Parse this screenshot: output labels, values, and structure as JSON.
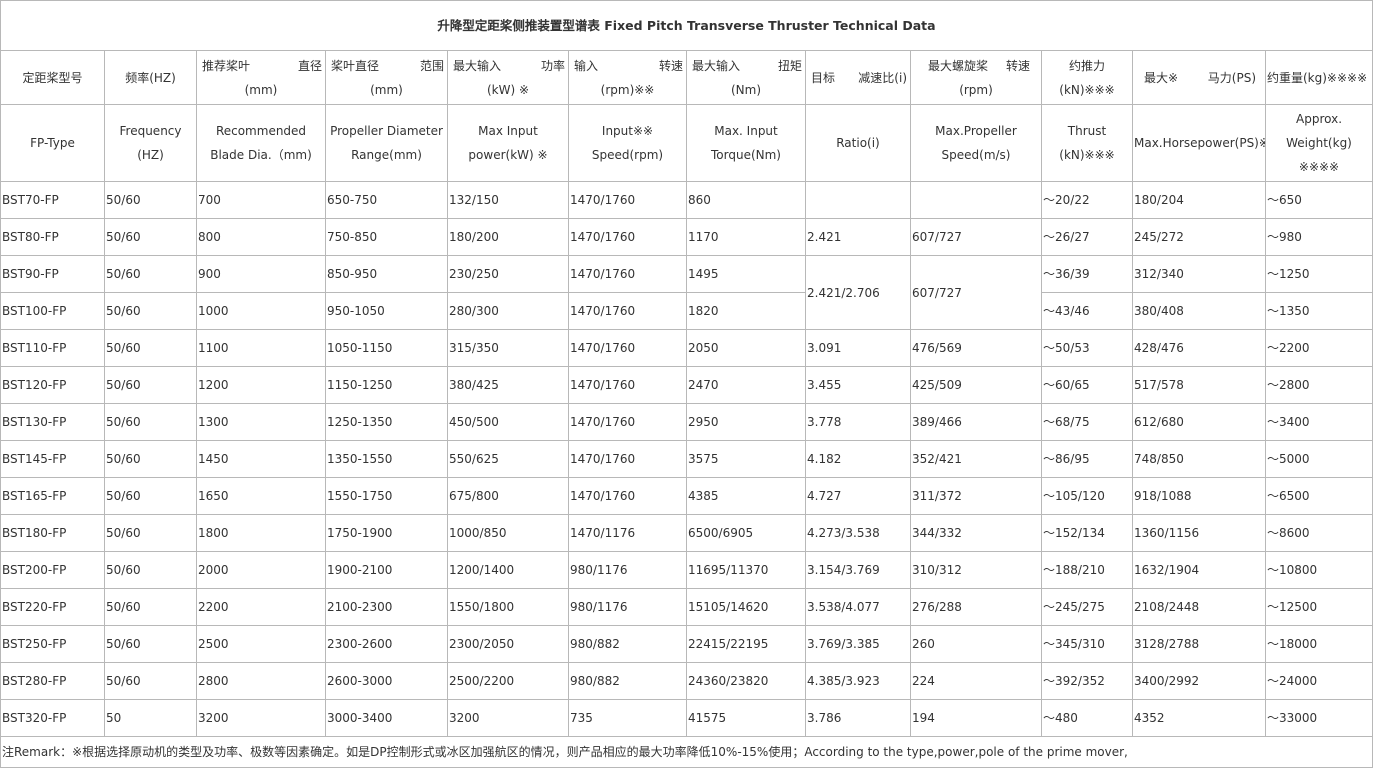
{
  "title": "升降型定距桨侧推装置型谱表  Fixed Pitch Transverse Thruster Technical Data",
  "header_cn": {
    "model": "定距桨型号",
    "frequency": "频率(HZ)",
    "blade_a": "推荐桨叶",
    "blade_b": "直径",
    "blade_c": "(mm)",
    "range_a": "桨叶直径",
    "range_b": "范围",
    "range_c": "(mm)",
    "power_a": "最大输入",
    "power_b": "功率",
    "power_c": "(kW) ※",
    "speed_a": "输入",
    "speed_b": "转速",
    "speed_c": "(rpm)※※",
    "torque_a": "最大输入",
    "torque_b": "扭矩",
    "torque_c": "(Nm)",
    "ratio_a": "目标",
    "ratio_b": "减速比(i)",
    "prop_a": "最大螺旋桨",
    "prop_b": "转速",
    "prop_c": "(rpm)",
    "thrust_a": "约推力",
    "thrust_c": "(kN)※※※",
    "hp_a": "最大※",
    "hp_b": "马力(PS)",
    "weight": "约重量(kg)※※※※"
  },
  "header_en": {
    "model": "FP-Type",
    "frequency": "Frequency  (HZ)",
    "blade_a": "Recommended",
    "blade_b": "Blade Dia.（mm)",
    "range_a": "Propeller Diameter",
    "range_b": "Range(mm)",
    "power_a": "Max Input",
    "power_b": "power(kW) ※",
    "speed_a": "Input※※",
    "speed_b": "Speed(rpm)",
    "torque_a": "Max. Input",
    "torque_b": "Torque(Nm)",
    "ratio": "Ratio(i)",
    "prop_a": "Max.Propeller",
    "prop_b": "Speed(m/s)",
    "thrust_a": "Thrust",
    "thrust_b": "(kN)※※※",
    "hp": "Max.Horsepower(PS)※",
    "weight_a": "Approx.",
    "weight_b": "Weight(kg)",
    "weight_c": "※※※※"
  },
  "rows": [
    {
      "model": "BST70-FP",
      "freq": "50/60",
      "blade": "700",
      "range": "650-750",
      "power": "132/150",
      "speed": "1470/1760",
      "torque": "860",
      "ratio": "",
      "prop": "",
      "thrust": "～20/22",
      "hp": "180/204",
      "weight": "～650"
    },
    {
      "model": "BST80-FP",
      "freq": "50/60",
      "blade": "800",
      "range": "750-850",
      "power": "180/200",
      "speed": "1470/1760",
      "torque": "1170",
      "ratio": "2.421",
      "prop": "607/727",
      "thrust": "～26/27",
      "hp": "245/272",
      "weight": "～980"
    },
    {
      "model": "BST90-FP",
      "freq": "50/60",
      "blade": "900",
      "range": "850-950",
      "power": "230/250",
      "speed": "1470/1760",
      "torque": "1495",
      "ratio": "2.421/2.706",
      "prop": "607/727",
      "thrust": "～36/39",
      "hp": "312/340",
      "weight": "～1250"
    },
    {
      "model": "BST100-FP",
      "freq": "50/60",
      "blade": "1000",
      "range": "950-1050",
      "power": "280/300",
      "speed": "1470/1760",
      "torque": "1820",
      "thrust": "～43/46",
      "hp": "380/408",
      "weight": "～1350"
    },
    {
      "model": "BST110-FP",
      "freq": "50/60",
      "blade": "1100",
      "range": "1050-1150",
      "power": "315/350",
      "speed": "1470/1760",
      "torque": "2050",
      "ratio": "3.091",
      "prop": "476/569",
      "thrust": "～50/53",
      "hp": "428/476",
      "weight": "～2200"
    },
    {
      "model": "BST120-FP",
      "freq": "50/60",
      "blade": "1200",
      "range": "1150-1250",
      "power": "380/425",
      "speed": "1470/1760",
      "torque": "2470",
      "ratio": "3.455",
      "prop": "425/509",
      "thrust": "～60/65",
      "hp": "517/578",
      "weight": "～2800"
    },
    {
      "model": "BST130-FP",
      "freq": "50/60",
      "blade": "1300",
      "range": "1250-1350",
      "power": "450/500",
      "speed": "1470/1760",
      "torque": "2950",
      "ratio": "3.778",
      "prop": "389/466",
      "thrust": "～68/75",
      "hp": "612/680",
      "weight": "～3400"
    },
    {
      "model": "BST145-FP",
      "freq": "50/60",
      "blade": "1450",
      "range": "1350-1550",
      "power": "550/625",
      "speed": "1470/1760",
      "torque": "3575",
      "ratio": "4.182",
      "prop": "352/421",
      "thrust": "～86/95",
      "hp": "748/850",
      "weight": "～5000"
    },
    {
      "model": "BST165-FP",
      "freq": "50/60",
      "blade": "1650",
      "range": "1550-1750",
      "power": "675/800",
      "speed": "1470/1760",
      "torque": "4385",
      "ratio": "4.727",
      "prop": "311/372",
      "thrust": "～105/120",
      "hp": "918/1088",
      "weight": "～6500"
    },
    {
      "model": "BST180-FP",
      "freq": "50/60",
      "blade": "1800",
      "range": "1750-1900",
      "power": "1000/850",
      "speed": "1470/1176",
      "torque": "6500/6905",
      "ratio": "4.273/3.538",
      "prop": "344/332",
      "thrust": "～152/134",
      "hp": "1360/1156",
      "weight": "～8600"
    },
    {
      "model": "BST200-FP",
      "freq": "50/60",
      "blade": "2000",
      "range": "1900-2100",
      "power": "1200/1400",
      "speed": "980/1176",
      "torque": "11695/11370",
      "ratio": "3.154/3.769",
      "prop": "310/312",
      "thrust": "～188/210",
      "hp": "1632/1904",
      "weight": "～10800"
    },
    {
      "model": "BST220-FP",
      "freq": "50/60",
      "blade": "2200",
      "range": "2100-2300",
      "power": "1550/1800",
      "speed": "980/1176",
      "torque": "15105/14620",
      "ratio": "3.538/4.077",
      "prop": "276/288",
      "thrust": "～245/275",
      "hp": "2108/2448",
      "weight": "～12500"
    },
    {
      "model": "BST250-FP",
      "freq": "50/60",
      "blade": "2500",
      "range": "2300-2600",
      "power": "2300/2050",
      "speed": "980/882",
      "torque": "22415/22195",
      "ratio": "3.769/3.385",
      "prop": "260",
      "thrust": "～345/310",
      "hp": "3128/2788",
      "weight": "～18000"
    },
    {
      "model": "BST280-FP",
      "freq": "50/60",
      "blade": "2800",
      "range": "2600-3000",
      "power": "2500/2200",
      "speed": "980/882",
      "torque": "24360/23820",
      "ratio": "4.385/3.923",
      "prop": "224",
      "thrust": "～392/352",
      "hp": "3400/2992",
      "weight": "～24000"
    },
    {
      "model": "BST320-FP",
      "freq": "50",
      "blade": "3200",
      "range": "3000-3400",
      "power": "3200",
      "speed": "735",
      "torque": "41575",
      "ratio": "3.786",
      "prop": "194",
      "thrust": "～480",
      "hp": "4352",
      "weight": "～33000"
    }
  ],
  "remark": "注Remark：※根据选择原动机的类型及功率、极数等因素确定。如是DP控制形式或冰区加强航区的情况，则产品相应的最大功率降低10%-15%使用；According to the type,power,pole of the prime mover,"
}
